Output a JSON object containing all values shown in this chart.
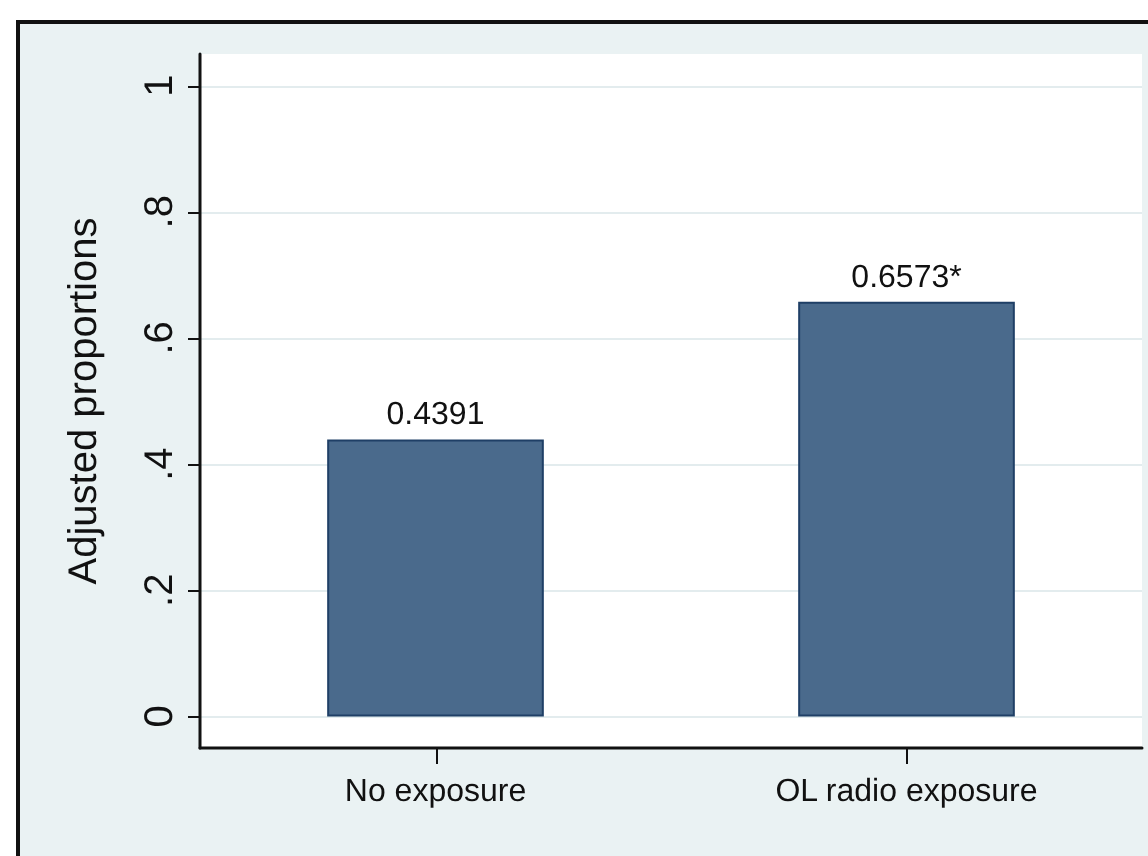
{
  "chart_data": {
    "type": "bar",
    "categories": [
      "No exposure",
      "OL radio exposure"
    ],
    "values": [
      0.4391,
      0.6573
    ],
    "value_labels": [
      "0.4391",
      "0.6573*"
    ],
    "color": "#4a6a8c",
    "ylabel": "Adjusted proportions",
    "ylim": [
      -0.05,
      1.05
    ],
    "yticks": [
      0,
      {
        "value": 0.2,
        "label": ".2"
      },
      {
        "value": 0.4,
        "label": ".4"
      },
      {
        "value": 0.6,
        "label": ".6"
      },
      {
        "value": 0.8,
        "label": ".8"
      },
      1
    ],
    "grid": "y"
  }
}
